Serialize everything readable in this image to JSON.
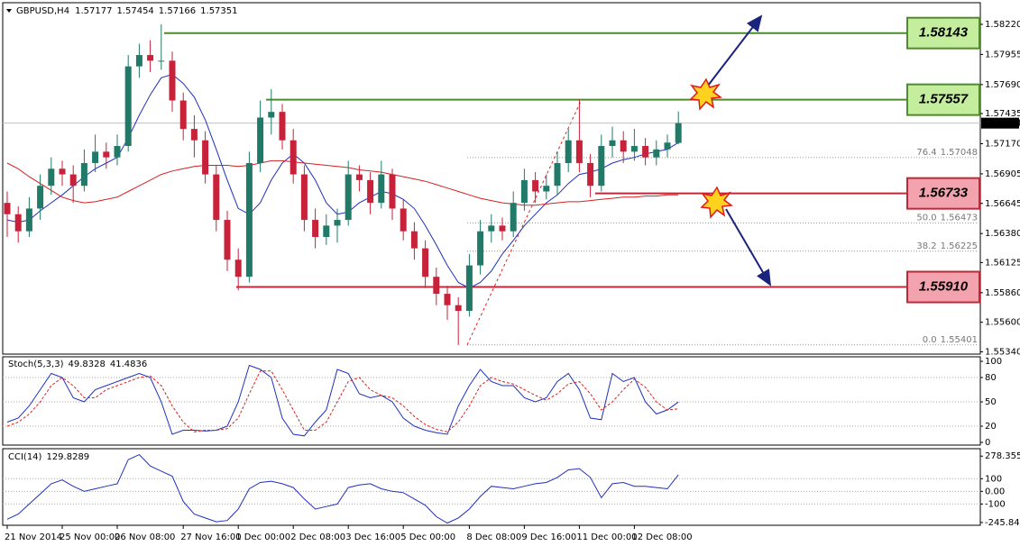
{
  "chart_data": [
    {
      "type": "candlestick",
      "title": "GBPUSD,H4",
      "open": [
        1.5665,
        1.5655,
        1.564,
        1.566,
        1.568,
        1.5695,
        1.569,
        1.568,
        1.57,
        1.571,
        1.5705,
        1.5715,
        1.5785,
        1.5795,
        1.579,
        1.579,
        1.5755,
        1.573,
        1.572,
        1.569,
        1.565,
        1.5615,
        1.56,
        1.57,
        1.574,
        1.5745,
        1.572,
        1.569,
        1.565,
        1.5635,
        1.5645,
        1.565,
        1.569,
        1.5685,
        1.5665,
        1.569,
        1.566,
        1.564,
        1.5625,
        1.56,
        1.5585,
        1.5575,
        1.557,
        1.561,
        1.564,
        1.5645,
        1.564,
        1.5665,
        1.5685,
        1.5675,
        1.568,
        1.57,
        1.572,
        1.57,
        1.568,
        1.5715,
        1.572,
        1.571,
        1.5715,
        1.5705,
        1.5712,
        1.57177
      ],
      "high": [
        1.5675,
        1.5662,
        1.567,
        1.569,
        1.5705,
        1.5702,
        1.5698,
        1.5712,
        1.5725,
        1.5718,
        1.5725,
        1.5795,
        1.5805,
        1.5808,
        1.5822,
        1.5798,
        1.5762,
        1.5742,
        1.5728,
        1.5698,
        1.5658,
        1.5625,
        1.571,
        1.5755,
        1.5765,
        1.5752,
        1.573,
        1.5698,
        1.566,
        1.5655,
        1.566,
        1.5702,
        1.5698,
        1.5692,
        1.5702,
        1.5695,
        1.5668,
        1.5648,
        1.5632,
        1.5608,
        1.5592,
        1.5582,
        1.562,
        1.565,
        1.5655,
        1.5652,
        1.5675,
        1.5695,
        1.5692,
        1.569,
        1.571,
        1.573,
        1.5756,
        1.5708,
        1.5725,
        1.5732,
        1.5728,
        1.573,
        1.5722,
        1.572,
        1.5725,
        1.57454
      ],
      "low": [
        1.5635,
        1.563,
        1.5635,
        1.565,
        1.5672,
        1.568,
        1.5665,
        1.5675,
        1.5692,
        1.5695,
        1.5698,
        1.571,
        1.5775,
        1.578,
        1.5782,
        1.5745,
        1.572,
        1.5705,
        1.5682,
        1.564,
        1.5605,
        1.5588,
        1.5595,
        1.5692,
        1.5725,
        1.5712,
        1.5682,
        1.564,
        1.5625,
        1.5628,
        1.563,
        1.5645,
        1.5675,
        1.5655,
        1.566,
        1.565,
        1.5632,
        1.5615,
        1.559,
        1.5575,
        1.5562,
        1.554,
        1.5565,
        1.5602,
        1.563,
        1.5632,
        1.5635,
        1.5658,
        1.5665,
        1.5668,
        1.5672,
        1.5692,
        1.5692,
        1.567,
        1.5675,
        1.5705,
        1.57,
        1.5702,
        1.5698,
        1.5698,
        1.5705,
        1.57166
      ],
      "close": [
        1.5655,
        1.564,
        1.566,
        1.568,
        1.5695,
        1.569,
        1.568,
        1.57,
        1.571,
        1.5705,
        1.5715,
        1.5785,
        1.5795,
        1.579,
        1.579,
        1.5755,
        1.573,
        1.572,
        1.569,
        1.565,
        1.5615,
        1.56,
        1.57,
        1.574,
        1.5745,
        1.572,
        1.569,
        1.565,
        1.5635,
        1.5645,
        1.565,
        1.569,
        1.5685,
        1.5665,
        1.569,
        1.566,
        1.564,
        1.5625,
        1.56,
        1.5585,
        1.5575,
        1.557,
        1.561,
        1.564,
        1.5645,
        1.564,
        1.5665,
        1.5685,
        1.5675,
        1.568,
        1.57,
        1.572,
        1.57,
        1.568,
        1.5715,
        1.572,
        1.571,
        1.5715,
        1.5705,
        1.5712,
        1.5718,
        1.57351
      ],
      "up_color": "#217a68",
      "down_color": "#c8223a",
      "series": [
        {
          "color": "#1f2fbf",
          "values": [
            1.565,
            1.5648,
            1.565,
            1.5658,
            1.5665,
            1.5672,
            1.568,
            1.5688,
            1.5695,
            1.57,
            1.5705,
            1.5722,
            1.5742,
            1.576,
            1.5775,
            1.5778,
            1.577,
            1.5758,
            1.5738,
            1.5712,
            1.5685,
            1.566,
            1.5655,
            1.5665,
            1.5685,
            1.57,
            1.5708,
            1.57,
            1.5685,
            1.5665,
            1.5655,
            1.5657,
            1.5665,
            1.567,
            1.5675,
            1.5673,
            1.5668,
            1.566,
            1.5645,
            1.5628,
            1.561,
            1.5595,
            1.559,
            1.5595,
            1.5605,
            1.562,
            1.5632,
            1.5645,
            1.5655,
            1.5665,
            1.5672,
            1.5682,
            1.569,
            1.5692,
            1.5695,
            1.57,
            1.5703,
            1.5705,
            1.5708,
            1.571,
            1.5712,
            1.5718
          ]
        },
        {
          "color": "#d42020",
          "values": [
            1.57,
            1.5695,
            1.5688,
            1.5682,
            1.5676,
            1.567,
            1.5667,
            1.5665,
            1.5666,
            1.5668,
            1.567,
            1.5675,
            1.568,
            1.5685,
            1.569,
            1.5693,
            1.5695,
            1.5697,
            1.5698,
            1.5698,
            1.5698,
            1.5697,
            1.5698,
            1.57,
            1.5702,
            1.5702,
            1.5701,
            1.57,
            1.5699,
            1.5698,
            1.5697,
            1.5696,
            1.5694,
            1.5693,
            1.5692,
            1.569,
            1.5688,
            1.5686,
            1.5684,
            1.5681,
            1.5678,
            1.5675,
            1.5672,
            1.5669,
            1.5667,
            1.5665,
            1.5664,
            1.5663,
            1.5663,
            1.5664,
            1.5665,
            1.5666,
            1.5666,
            1.5667,
            1.5668,
            1.5669,
            1.567,
            1.567,
            1.5671,
            1.5671,
            1.5672,
            1.5672
          ]
        }
      ],
      "ylim": [
        1.5532,
        1.5841
      ],
      "yticks": [
        {
          "value": 1.5822,
          "label": "1.58220"
        },
        1.57955,
        {
          "value": 1.5769,
          "label": "1.57690"
        },
        1.57435,
        {
          "value": 1.5717,
          "label": "1.57170"
        },
        1.56905,
        1.56645,
        {
          "value": 1.5638,
          "label": "1.56380"
        },
        1.56125,
        {
          "value": 1.5586,
          "label": "1.55860"
        },
        {
          "value": 1.556,
          "label": "1.55600"
        },
        {
          "value": 1.5534,
          "label": "1.55340"
        }
      ],
      "current_price": 1.57351,
      "levels": [
        {
          "value": 1.58143,
          "label": "1.58143",
          "color": "#4f8a2b",
          "fill": "#c4ee9e"
        },
        {
          "value": 1.57557,
          "label": "1.57557",
          "color": "#4f8a2b",
          "fill": "#c4ee9e"
        },
        {
          "value": 1.56733,
          "label": "1.56733",
          "color": "#c0283a",
          "fill": "#f3a3ae"
        },
        {
          "value": 1.5591,
          "label": "1.55910",
          "color": "#c0283a",
          "fill": "#f3a3ae"
        }
      ],
      "fib_levels": [
        {
          "ratio": "76.4",
          "value": 1.57048
        },
        {
          "ratio": "50.0",
          "value": 1.56473
        },
        {
          "ratio": "38.2",
          "value": 1.56225
        },
        {
          "ratio": "0.0",
          "value": 1.55401
        }
      ]
    },
    {
      "type": "line",
      "title": "Stoch(5,3,3)",
      "series": [
        {
          "color": "#1f2fbf",
          "values": [
            25,
            30,
            45,
            65,
            85,
            80,
            55,
            50,
            65,
            70,
            75,
            80,
            85,
            80,
            50,
            10,
            15,
            15,
            14,
            15,
            20,
            50,
            95,
            90,
            80,
            30,
            10,
            8,
            25,
            40,
            90,
            85,
            60,
            55,
            58,
            50,
            30,
            20,
            15,
            12,
            10,
            45,
            70,
            90,
            75,
            70,
            70,
            55,
            50,
            55,
            75,
            85,
            65,
            30,
            28,
            85,
            75,
            80,
            50,
            35,
            40,
            49.8328
          ]
        },
        {
          "color": "#e02020",
          "dashed": true,
          "values": [
            20,
            25,
            35,
            50,
            70,
            80,
            70,
            55,
            55,
            65,
            70,
            75,
            80,
            82,
            70,
            45,
            25,
            13,
            15,
            15,
            17,
            30,
            60,
            88,
            88,
            65,
            40,
            15,
            15,
            25,
            50,
            75,
            80,
            65,
            58,
            55,
            45,
            32,
            22,
            16,
            13,
            25,
            45,
            70,
            80,
            75,
            72,
            65,
            58,
            52,
            60,
            72,
            75,
            60,
            40,
            50,
            65,
            78,
            68,
            50,
            40,
            41.4836
          ]
        }
      ],
      "ylim": [
        -3.3,
        105.6
      ],
      "yticks": [
        100,
        80,
        50,
        20,
        0
      ],
      "levels": [
        80,
        50,
        20
      ]
    },
    {
      "type": "line",
      "title": "CCI(14)",
      "categories": [
        "21 Nov 2014",
        null,
        null,
        null,
        null,
        "25 Nov 00:00",
        null,
        null,
        null,
        null,
        "26 Nov 08:00",
        null,
        null,
        null,
        null,
        null,
        "27 Nov 16:00",
        null,
        null,
        null,
        null,
        "1 Dec 00:00",
        null,
        null,
        null,
        null,
        "2 Dec 08:00",
        null,
        null,
        null,
        null,
        "3 Dec 16:00",
        null,
        null,
        null,
        null,
        "5 Dec 00:00",
        null,
        null,
        null,
        null,
        null,
        "8 Dec 08:00",
        null,
        null,
        null,
        null,
        "9 Dec 16:00",
        null,
        null,
        null,
        null,
        "11 Dec 00:00",
        null,
        null,
        null,
        null,
        "12 Dec 08:00",
        null,
        null,
        null,
        null
      ],
      "series": [
        {
          "color": "#1f2fbf",
          "values": [
            -220,
            -180,
            -100,
            -20,
            60,
            90,
            40,
            0,
            20,
            40,
            60,
            250,
            290,
            200,
            160,
            120,
            -80,
            -180,
            -210,
            -240,
            -230,
            -140,
            20,
            70,
            80,
            60,
            30,
            -60,
            -140,
            -120,
            -100,
            30,
            50,
            60,
            20,
            0,
            -10,
            -60,
            -110,
            -200,
            -250,
            -210,
            -140,
            -40,
            40,
            30,
            20,
            40,
            60,
            70,
            110,
            170,
            180,
            110,
            -50,
            60,
            70,
            40,
            40,
            30,
            20,
            129.8289
          ]
        }
      ],
      "ylim": [
        -268,
        337
      ],
      "yticks": [
        278.3558,
        100,
        {
          "value": 0,
          "label": "0.00"
        },
        -100,
        -245.8475
      ],
      "levels": [
        100,
        0,
        -100
      ]
    }
  ]
}
